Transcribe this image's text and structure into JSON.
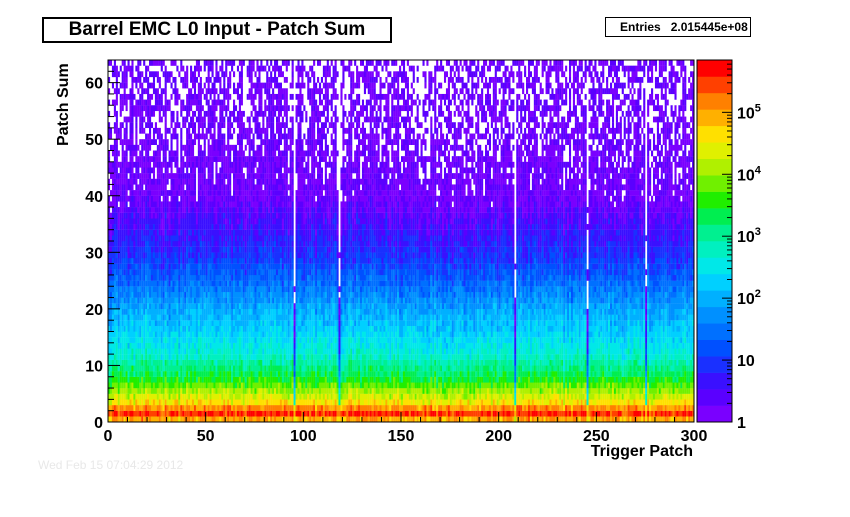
{
  "chart_data": {
    "type": "heatmap",
    "title": "Barrel EMC L0 Input - Patch Sum",
    "xlabel": "Trigger Patch",
    "ylabel": "Patch Sum",
    "xlim": [
      0,
      300
    ],
    "ylim": [
      0,
      64
    ],
    "x_ticks": [
      0,
      50,
      100,
      150,
      200,
      250,
      300
    ],
    "y_ticks": [
      0,
      10,
      20,
      30,
      40,
      50,
      60
    ],
    "z_scale": "log",
    "z_range": [
      1,
      700000
    ],
    "z_ticks": [
      {
        "value": 1,
        "label": "1"
      },
      {
        "value": 10,
        "label": "10"
      },
      {
        "value": 100,
        "label": "10",
        "exp": "2"
      },
      {
        "value": 1000,
        "label": "10",
        "exp": "3"
      },
      {
        "value": 10000,
        "label": "10",
        "exp": "4"
      },
      {
        "value": 100000,
        "label": "10",
        "exp": "5"
      }
    ],
    "stats": {
      "label": "Entries",
      "value": "2.015445e+08"
    },
    "palette": [
      "#7a00ff",
      "#5a00ff",
      "#3a10ff",
      "#1a30ff",
      "#0050ff",
      "#0070ff",
      "#0090ff",
      "#00b0ff",
      "#00d0ff",
      "#00e8e8",
      "#00f0c0",
      "#00f090",
      "#00ee50",
      "#20ee00",
      "#70f000",
      "#b0f000",
      "#e0f000",
      "#ffe000",
      "#ffb000",
      "#ff8000",
      "#ff4000",
      "#ff0000"
    ],
    "profile": {
      "description_of_values": "approximate counts per bin at patch sum y (bin width 1)",
      "sum_levels": [
        0,
        1,
        2,
        3,
        5,
        8,
        12,
        16,
        20,
        25,
        30,
        35,
        40,
        50,
        63
      ],
      "counts": [
        20000,
        500000,
        300000,
        60000,
        15000,
        2500,
        500,
        200,
        90,
        25,
        8,
        4,
        2,
        1.2,
        1
      ],
      "overflow_row_y": 62.5
    },
    "dead_patches": [
      95,
      118,
      208,
      245,
      275
    ]
  },
  "footer_stamp": "Wed Feb 15 07:04:29 2012"
}
